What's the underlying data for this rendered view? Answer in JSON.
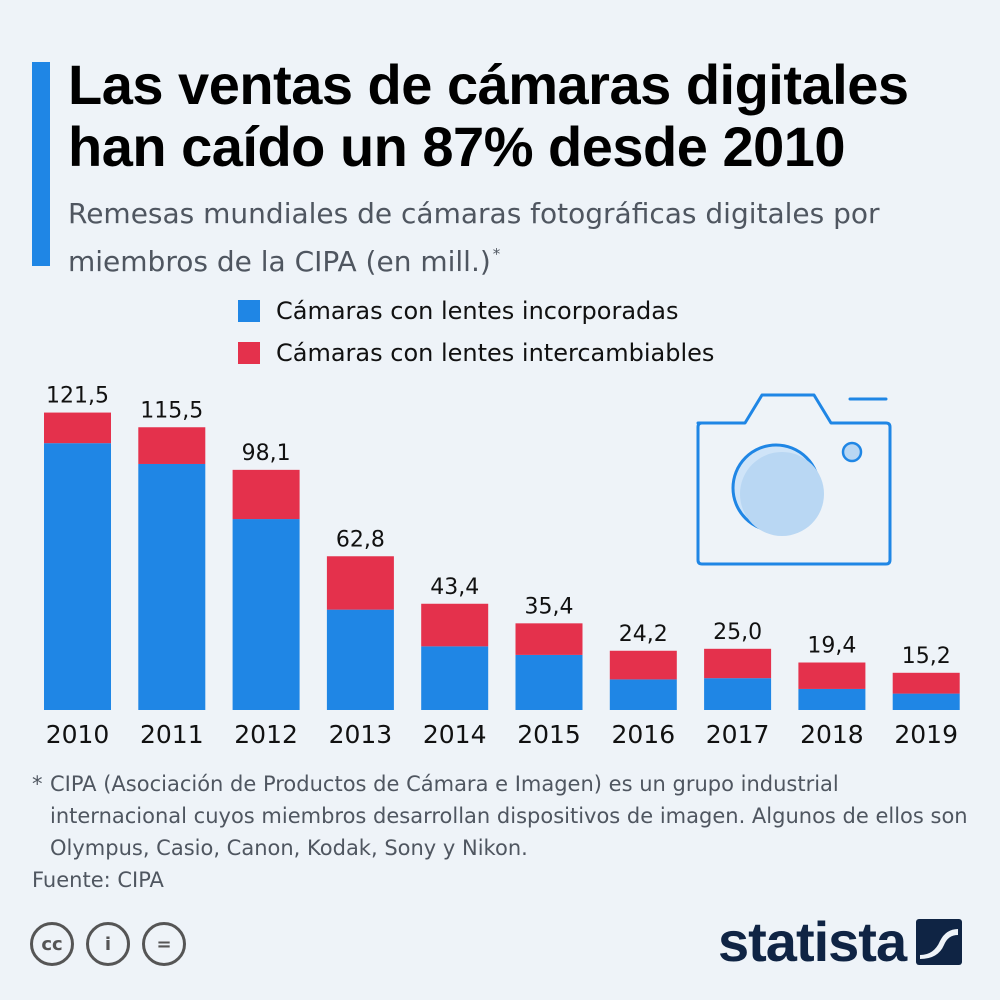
{
  "header": {
    "title": "Las ventas de cámaras digitales han caído un 87% desde 2010",
    "subtitle": "Remesas mundiales de cámaras fotográficas digitales por miembros de la CIPA (en mill.)",
    "subtitle_mark": "*"
  },
  "colors": {
    "accent": "#1f86e5",
    "built_in": "#1f86e5",
    "interchangeable": "#e4314c",
    "background": "#eef3f8",
    "brand": "#0f2444"
  },
  "chart_data": {
    "type": "bar",
    "stacked": true,
    "title": "Las ventas de cámaras digitales han caído un 87% desde 2010",
    "categories": [
      "2010",
      "2011",
      "2012",
      "2013",
      "2014",
      "2015",
      "2016",
      "2017",
      "2018",
      "2019"
    ],
    "series": [
      {
        "name": "Cámaras con lentes incorporadas",
        "values": [
          109.0,
          100.5,
          78.0,
          41.0,
          26.0,
          22.5,
          12.5,
          13.0,
          8.6,
          6.7
        ]
      },
      {
        "name": "Cámaras con lentes intercambiables",
        "values": [
          12.5,
          15.0,
          20.1,
          21.8,
          17.4,
          12.9,
          11.7,
          12.0,
          10.8,
          8.5
        ]
      }
    ],
    "totals": [
      121.5,
      115.5,
      98.1,
      62.8,
      43.4,
      35.4,
      24.2,
      25.0,
      19.4,
      15.2
    ],
    "total_labels": [
      "121,5",
      "115,5",
      "98,1",
      "62,8",
      "43,4",
      "35,4",
      "24,2",
      "25,0",
      "19,4",
      "15,2"
    ],
    "ylim": [
      0,
      125
    ],
    "xlabel": "",
    "ylabel": "",
    "grid": false,
    "legend_position": "top"
  },
  "legend": {
    "items": [
      {
        "label": "Cámaras con lentes incorporadas"
      },
      {
        "label": "Cámaras con lentes intercambiables"
      }
    ]
  },
  "footnote": {
    "star": "*",
    "text": "CIPA (Asociación de Productos de Cámara e Imagen) es un grupo industrial internacional cuyos miembros desarrollan dispositivos de imagen. Algunos de ellos son Olympus, Casio, Canon, Kodak, Sony y Nikon.",
    "source": "Fuente: CIPA"
  },
  "license_icons": [
    {
      "name": "cc-icon",
      "glyph": "cc"
    },
    {
      "name": "attribution-icon",
      "glyph": "i"
    },
    {
      "name": "no-derivatives-icon",
      "glyph": "="
    }
  ],
  "brand": {
    "name": "statista"
  }
}
